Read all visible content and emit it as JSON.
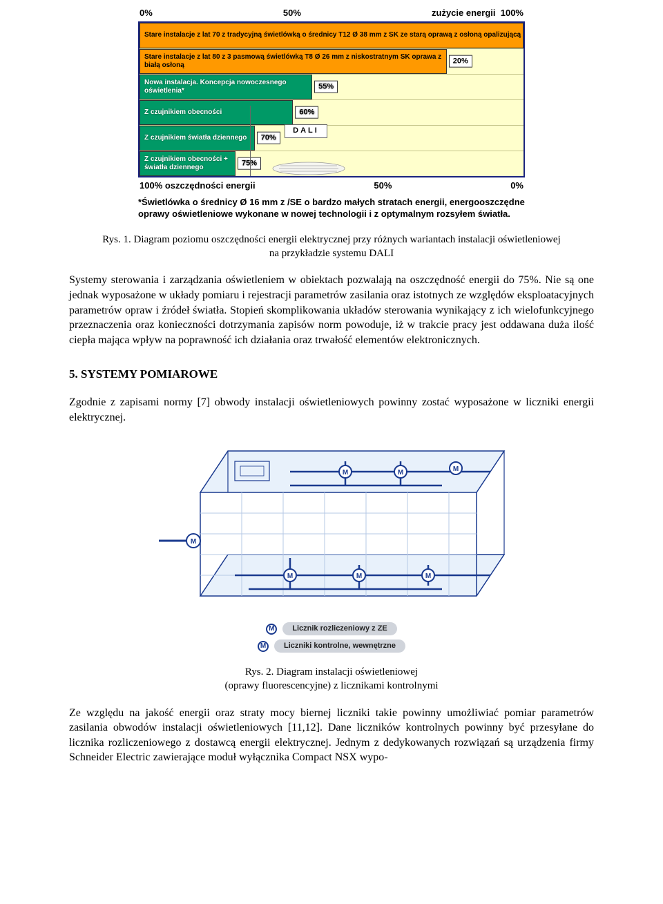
{
  "chart": {
    "axis_top": {
      "left": "0%",
      "mid": "50%",
      "label": "zużycie energii",
      "right": "100%"
    },
    "axis_bottom": {
      "left": "100% oszczędności energii",
      "mid": "50%",
      "right": "0%"
    },
    "colors": {
      "border": "#1a237e",
      "bg": "#ffffcc",
      "orange": "#ff9900",
      "green": "#009966"
    },
    "rows": [
      {
        "label": "Stare instalacje z lat 70 z tradycyjną świetlówką o średnicy T12 Ø 38 mm z SK ze starą oprawą z osłoną opalizującą",
        "width_pct": 100,
        "color": "orange",
        "badge": null
      },
      {
        "label": "Stare instalacje z lat 80 z 3 pasmową świetlówką T8 Ø 26 mm z niskostratnym SK oprawa z białą osłoną",
        "width_pct": 80,
        "color": "orange",
        "badge": "20%"
      },
      {
        "label": "Nowa instalacja. Koncepcja nowoczesnego oświetlenia*",
        "width_pct": 45,
        "color": "green",
        "badge": "55%"
      },
      {
        "label": "Z czujnikiem obecności",
        "width_pct": 40,
        "color": "green",
        "badge": "60%"
      },
      {
        "label": "Z czujnikiem światła dziennego",
        "width_pct": 30,
        "color": "green",
        "badge": "70%"
      },
      {
        "label": "Z czujnikiem obecności + światła dziennego",
        "width_pct": 25,
        "color": "green",
        "badge": "75%"
      }
    ],
    "dali_label": "DALI",
    "footnote": "*Świetlówka o średnicy Ø 16 mm z /SE o bardzo małych stratach energii, energooszczędne oprawy oświetleniowe wykonane w nowej technologii i z optymalnym rozsyłem światła."
  },
  "caption1": {
    "line1": "Rys. 1. Diagram poziomu oszczędności  energii elektrycznej przy różnych wariantach instalacji oświetleniowej",
    "line2": "na przykładzie systemu DALI"
  },
  "para1": "Systemy sterowania i zarządzania oświetleniem w obiektach pozwalają na oszczędność energii do 75%. Nie są one jednak wyposażone w układy pomiaru i rejestracji parametrów zasilania oraz istotnych ze względów eksploatacyjnych parametrów opraw i źródeł światła. Stopień skomplikowania układów sterowania wynikający z ich wielofunkcyjnego przeznaczenia oraz konieczności dotrzymania zapisów norm powoduje, iż w trakcie pracy jest oddawana duża ilość ciepła mająca wpływ na poprawność ich działania oraz trwałość elementów elektronicznych.",
  "section_heading": "5. SYSTEMY POMIAROWE",
  "para2": "Zgodnie z zapisami normy [7] obwody instalacji oświetleniowych powinny zostać wyposażone w liczniki energii elektrycznej.",
  "building": {
    "stroke": "#1a3a8f",
    "fill_light": "#e8f1fb",
    "meter_letter": "M",
    "legend1": "Licznik  rozliczeniowy z ZE",
    "legend2": "Liczniki kontrolne, wewnętrzne"
  },
  "caption2": {
    "line1": "Rys. 2. Diagram instalacji oświetleniowej",
    "line2": "(oprawy fluorescencyjne) z licznikami kontrolnymi"
  },
  "para3": "Ze względu na jakość energii oraz straty mocy biernej liczniki takie powinny umożliwiać pomiar parametrów zasilania obwodów instalacji oświetleniowych [11,12]. Dane liczników kontrolnych powinny być przesyłane do licznika rozliczeniowego z dostawcą energii elektrycznej. Jednym z dedykowanych rozwiązań są urządzenia firmy Schneider Electric zawierające moduł wyłącznika Compact NSX wypo-"
}
